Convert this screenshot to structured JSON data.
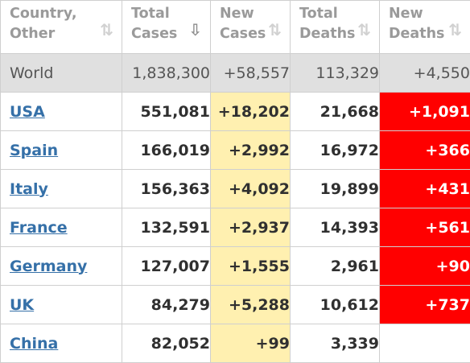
{
  "headers": [
    {
      "label": "Country,\nOther",
      "sort": "⇅"
    },
    {
      "label": "Total\nCases",
      "sort": "⇩"
    },
    {
      "label": "New\nCases",
      "sort": "⇅"
    },
    {
      "label": "Total\nDeaths",
      "sort": "⇅"
    },
    {
      "label": "New\nDeaths",
      "sort": "⇅"
    }
  ],
  "world": {
    "country": "World",
    "total_cases": "1,838,300",
    "new_cases": "+58,557",
    "total_deaths": "113,329",
    "new_deaths": "+4,550"
  },
  "rows": [
    {
      "country": "USA",
      "total_cases": "551,081",
      "new_cases": "+18,202",
      "total_deaths": "21,668",
      "new_deaths": "+1,091"
    },
    {
      "country": "Spain",
      "total_cases": "166,019",
      "new_cases": "+2,992",
      "total_deaths": "16,972",
      "new_deaths": "+366"
    },
    {
      "country": "Italy",
      "total_cases": "156,363",
      "new_cases": "+4,092",
      "total_deaths": "19,899",
      "new_deaths": "+431"
    },
    {
      "country": "France",
      "total_cases": "132,591",
      "new_cases": "+2,937",
      "total_deaths": "14,393",
      "new_deaths": "+561"
    },
    {
      "country": "Germany",
      "total_cases": "127,007",
      "new_cases": "+1,555",
      "total_deaths": "2,961",
      "new_deaths": "+90"
    },
    {
      "country": "UK",
      "total_cases": "84,279",
      "new_cases": "+5,288",
      "total_deaths": "10,612",
      "new_deaths": "+737"
    },
    {
      "country": "China",
      "total_cases": "82,052",
      "new_cases": "+99",
      "total_deaths": "3,339",
      "new_deaths": ""
    }
  ],
  "colors": {
    "new_cases_bg": "#fff0b0",
    "new_deaths_bg": "#ff0000",
    "link": "#3570a8",
    "world_bg": "#e0e0e0"
  }
}
